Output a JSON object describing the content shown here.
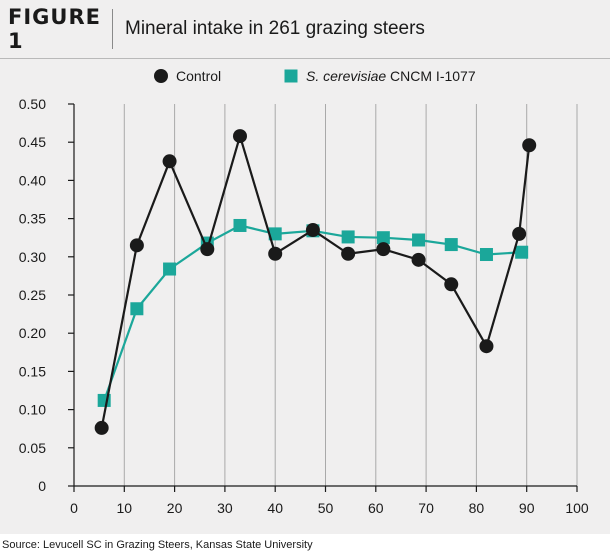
{
  "figure": {
    "label": "FIGURE 1",
    "title": "Mineral intake in 261 grazing steers",
    "source": "Source: Levucell SC in Grazing Steers, Kansas State University"
  },
  "colors": {
    "control": "#1a1a1a",
    "treatment": "#1ba79a",
    "grid": "#a9a9a9",
    "axis": "#1a1a1a"
  },
  "chart_data": {
    "type": "line",
    "xlabel": "",
    "ylabel": "",
    "xlim": [
      0,
      100
    ],
    "ylim": [
      0,
      0.5
    ],
    "x_ticks": [
      0,
      10,
      20,
      30,
      40,
      50,
      60,
      70,
      80,
      90,
      100
    ],
    "y_ticks": [
      0,
      0.05,
      0.1,
      0.15,
      0.2,
      0.25,
      0.3,
      0.35,
      0.4,
      0.45,
      0.5
    ],
    "x_tick_labels": [
      "0",
      "10",
      "20",
      "30",
      "40",
      "50",
      "60",
      "70",
      "80",
      "90",
      "100"
    ],
    "y_tick_labels": [
      "0",
      "0.05",
      "0.10",
      "0.15",
      "0.20",
      "0.25",
      "0.30",
      "0.35",
      "0.40",
      "0.45",
      "0.50"
    ],
    "grid": "vertical",
    "legend_position": "top",
    "series": [
      {
        "name": "Control",
        "name_italic": "",
        "name_rest": "Control",
        "marker": "circle",
        "color_key": "control",
        "x": [
          5.5,
          12.5,
          19,
          26.5,
          33,
          40,
          47.5,
          54.5,
          61.5,
          68.5,
          75,
          82,
          88.5,
          90.5
        ],
        "y": [
          0.076,
          0.315,
          0.425,
          0.31,
          0.458,
          0.304,
          0.335,
          0.304,
          0.31,
          0.296,
          0.264,
          0.183,
          0.33,
          0.446
        ]
      },
      {
        "name": "S. cerevisiae CNCM I-1077",
        "name_italic": "S. cerevisiae",
        "name_rest": " CNCM I-1077",
        "marker": "square",
        "color_key": "treatment",
        "x": [
          6,
          12.5,
          19,
          26.5,
          33,
          40,
          47.5,
          54.5,
          61.5,
          68.5,
          75,
          82,
          89
        ],
        "y": [
          0.112,
          0.232,
          0.284,
          0.318,
          0.341,
          0.33,
          0.334,
          0.326,
          0.325,
          0.322,
          0.316,
          0.303,
          0.306
        ]
      }
    ]
  }
}
